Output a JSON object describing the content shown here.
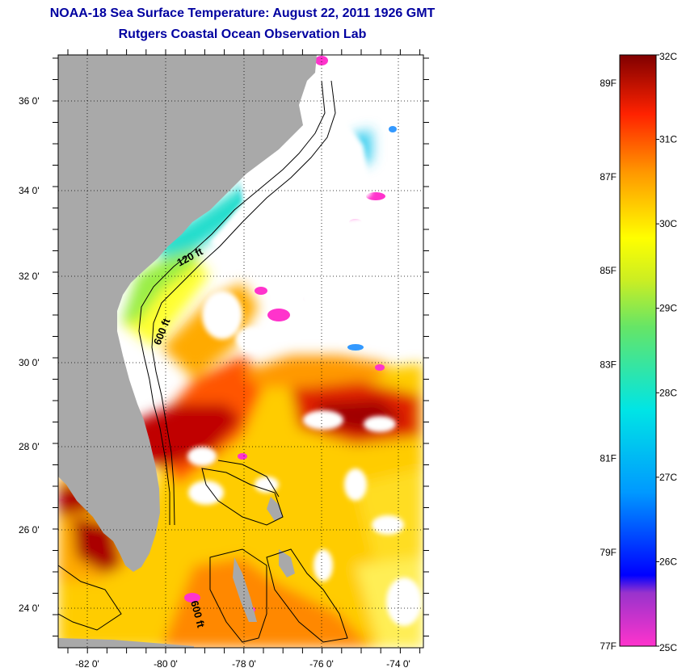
{
  "title": "NOAA-18 Sea Surface Temperature:  August 22, 2011 1926 GMT",
  "subtitle": "Rutgers Coastal Ocean Observation Lab",
  "map": {
    "lon_range": [
      -83,
      -73
    ],
    "lat_range": [
      23,
      37
    ],
    "lat_ticks": [
      {
        "value": 36,
        "label": "36 0'"
      },
      {
        "value": 34,
        "label": "34 0'"
      },
      {
        "value": 32,
        "label": "32 0'"
      },
      {
        "value": 30,
        "label": "30 0'"
      },
      {
        "value": 28,
        "label": "28 0'"
      },
      {
        "value": 26,
        "label": "26 0'"
      },
      {
        "value": 24,
        "label": "24 0'"
      }
    ],
    "lon_ticks": [
      {
        "value": -82,
        "label": "-82 0'"
      },
      {
        "value": -80,
        "label": "-80 0'"
      },
      {
        "value": -78,
        "label": "-78 0'"
      },
      {
        "value": -76,
        "label": "-76 0'"
      },
      {
        "value": -74,
        "label": "-74 0'"
      }
    ],
    "contour_labels": [
      "120 ft",
      "600 ft",
      "600 ft"
    ],
    "colors": {
      "land": "#a9a9a9",
      "cloud": "#ffffff",
      "grid": "#000000"
    }
  },
  "colorbar": {
    "celsius_labels": [
      "32C",
      "31C",
      "30C",
      "29C",
      "28C",
      "27C",
      "26C",
      "25C"
    ],
    "fahrenheit_labels": [
      "89F",
      "87F",
      "85F",
      "83F",
      "81F",
      "79F",
      "77F"
    ],
    "celsius_values": [
      32,
      31,
      30,
      29,
      28,
      27,
      26,
      25
    ],
    "fahrenheit_values": [
      89,
      87,
      85,
      83,
      81,
      79,
      77
    ],
    "range_c": [
      25,
      32
    ],
    "stops": [
      "#ff33cc",
      "#9933cc",
      "#0000ff",
      "#0099ff",
      "#00e5e5",
      "#66e566",
      "#ccee22",
      "#ffff00",
      "#ff9900",
      "#ff2200",
      "#800000"
    ]
  }
}
